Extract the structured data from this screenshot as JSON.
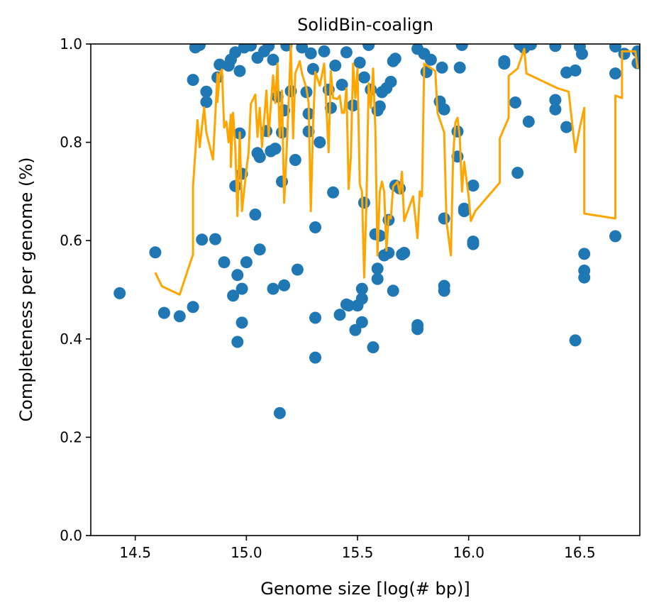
{
  "chart_data": {
    "type": "scatter",
    "title": "SolidBin-coalign",
    "xlabel": "Genome size [log(# bp)]",
    "ylabel": "Completeness per genome (%)",
    "xlim": [
      14.3,
      16.77
    ],
    "ylim": [
      0.0,
      1.0
    ],
    "xticks": [
      14.5,
      15.0,
      15.5,
      16.0,
      16.5
    ],
    "xtick_labels": [
      "14.5",
      "15.0",
      "15.5",
      "16.0",
      "16.5"
    ],
    "yticks": [
      0.0,
      0.2,
      0.4,
      0.6,
      0.8,
      1.0
    ],
    "ytick_labels": [
      "0.0",
      "0.2",
      "0.4",
      "0.6",
      "0.8",
      "1.0"
    ],
    "grid": false,
    "scatter_color": "#1f77b4",
    "line_color": "#ffa500",
    "points": [
      [
        14.43,
        0.493
      ],
      [
        14.59,
        0.576
      ],
      [
        14.63,
        0.453
      ],
      [
        14.7,
        0.446
      ],
      [
        14.76,
        0.465
      ],
      [
        14.76,
        0.927
      ],
      [
        14.77,
        0.993
      ],
      [
        14.79,
        0.998
      ],
      [
        14.8,
        0.602
      ],
      [
        14.82,
        0.903
      ],
      [
        14.82,
        0.882
      ],
      [
        14.86,
        0.603
      ],
      [
        14.87,
        0.932
      ],
      [
        14.88,
        0.958
      ],
      [
        14.9,
        0.556
      ],
      [
        14.92,
        0.956
      ],
      [
        14.93,
        0.968
      ],
      [
        14.94,
        0.488
      ],
      [
        14.95,
        0.711
      ],
      [
        14.95,
        0.983
      ],
      [
        14.96,
        0.394
      ],
      [
        14.96,
        0.53
      ],
      [
        14.97,
        0.945
      ],
      [
        14.97,
        0.818
      ],
      [
        14.98,
        0.502
      ],
      [
        14.98,
        0.433
      ],
      [
        14.98,
        0.736
      ],
      [
        14.99,
        0.993
      ],
      [
        15.0,
        0.556
      ],
      [
        15.02,
        0.997
      ],
      [
        15.04,
        0.653
      ],
      [
        15.05,
        0.972
      ],
      [
        15.05,
        0.778
      ],
      [
        15.06,
        0.77
      ],
      [
        15.06,
        0.582
      ],
      [
        15.08,
        0.985
      ],
      [
        15.09,
        0.823
      ],
      [
        15.1,
        0.996
      ],
      [
        15.11,
        0.782
      ],
      [
        15.12,
        0.502
      ],
      [
        15.12,
        0.968
      ],
      [
        15.13,
        0.787
      ],
      [
        15.14,
        0.893
      ],
      [
        15.15,
        0.249
      ],
      [
        15.16,
        0.82
      ],
      [
        15.16,
        0.72
      ],
      [
        15.17,
        0.865
      ],
      [
        15.17,
        0.509
      ],
      [
        15.18,
        0.997
      ],
      [
        15.2,
        0.904
      ],
      [
        15.22,
        0.764
      ],
      [
        15.23,
        0.541
      ],
      [
        15.25,
        0.993
      ],
      [
        15.27,
        0.902
      ],
      [
        15.28,
        0.822
      ],
      [
        15.28,
        0.858
      ],
      [
        15.29,
        0.981
      ],
      [
        15.3,
        0.949
      ],
      [
        15.31,
        0.627
      ],
      [
        15.31,
        0.443
      ],
      [
        15.31,
        0.362
      ],
      [
        15.33,
        0.8
      ],
      [
        15.35,
        0.985
      ],
      [
        15.37,
        0.907
      ],
      [
        15.38,
        0.87
      ],
      [
        15.39,
        0.698
      ],
      [
        15.4,
        0.956
      ],
      [
        15.42,
        0.449
      ],
      [
        15.43,
        0.917
      ],
      [
        15.45,
        0.47
      ],
      [
        15.45,
        0.983
      ],
      [
        15.46,
        0.468
      ],
      [
        15.48,
        0.875
      ],
      [
        15.49,
        0.418
      ],
      [
        15.5,
        0.468
      ],
      [
        15.51,
        0.962
      ],
      [
        15.52,
        0.482
      ],
      [
        15.52,
        0.502
      ],
      [
        15.52,
        0.434
      ],
      [
        15.53,
        0.677
      ],
      [
        15.53,
        0.932
      ],
      [
        15.55,
        0.998
      ],
      [
        15.56,
        0.907
      ],
      [
        15.57,
        0.383
      ],
      [
        15.58,
        0.613
      ],
      [
        15.59,
        0.865
      ],
      [
        15.59,
        0.543
      ],
      [
        15.59,
        0.522
      ],
      [
        15.6,
        0.873
      ],
      [
        15.6,
        0.61
      ],
      [
        15.61,
        0.902
      ],
      [
        15.62,
        0.57
      ],
      [
        15.63,
        0.91
      ],
      [
        15.64,
        0.575
      ],
      [
        15.64,
        0.642
      ],
      [
        15.65,
        0.923
      ],
      [
        15.66,
        0.965
      ],
      [
        15.66,
        0.498
      ],
      [
        15.67,
        0.97
      ],
      [
        15.67,
        0.712
      ],
      [
        15.69,
        0.706
      ],
      [
        15.7,
        0.572
      ],
      [
        15.71,
        0.575
      ],
      [
        15.77,
        0.428
      ],
      [
        15.77,
        0.42
      ],
      [
        15.77,
        0.99
      ],
      [
        15.8,
        0.98
      ],
      [
        15.81,
        0.943
      ],
      [
        15.83,
        0.968
      ],
      [
        15.87,
        0.883
      ],
      [
        15.88,
        0.952
      ],
      [
        15.89,
        0.645
      ],
      [
        15.89,
        0.867
      ],
      [
        15.89,
        0.508
      ],
      [
        15.89,
        0.498
      ],
      [
        15.95,
        0.822
      ],
      [
        15.95,
        0.771
      ],
      [
        15.96,
        0.952
      ],
      [
        15.97,
        0.998
      ],
      [
        15.98,
        0.665
      ],
      [
        15.98,
        0.66
      ],
      [
        16.02,
        0.712
      ],
      [
        16.02,
        0.598
      ],
      [
        16.02,
        0.593
      ],
      [
        16.16,
        0.965
      ],
      [
        16.16,
        0.96
      ],
      [
        16.21,
        0.881
      ],
      [
        16.22,
        0.738
      ],
      [
        16.23,
        0.999
      ],
      [
        16.25,
        0.992
      ],
      [
        16.27,
        0.842
      ],
      [
        16.28,
        0.999
      ],
      [
        16.39,
        0.996
      ],
      [
        16.39,
        0.886
      ],
      [
        16.39,
        0.867
      ],
      [
        16.44,
        0.831
      ],
      [
        16.44,
        0.942
      ],
      [
        16.48,
        0.946
      ],
      [
        16.48,
        0.397
      ],
      [
        16.5,
        0.995
      ],
      [
        16.51,
        0.98
      ],
      [
        16.52,
        0.573
      ],
      [
        16.52,
        0.539
      ],
      [
        16.52,
        0.525
      ],
      [
        16.66,
        0.995
      ],
      [
        16.66,
        0.94
      ],
      [
        16.66,
        0.609
      ],
      [
        16.7,
        0.98
      ],
      [
        16.76,
        0.985
      ],
      [
        16.76,
        0.961
      ]
    ],
    "line": [
      [
        14.59,
        0.535
      ],
      [
        14.62,
        0.507
      ],
      [
        14.7,
        0.49
      ],
      [
        14.76,
        0.572
      ],
      [
        14.76,
        0.71
      ],
      [
        14.78,
        0.845
      ],
      [
        14.79,
        0.79
      ],
      [
        14.81,
        0.871
      ],
      [
        14.82,
        0.82
      ],
      [
        14.85,
        0.765
      ],
      [
        14.87,
        0.94
      ],
      [
        14.87,
        0.882
      ],
      [
        14.88,
        0.938
      ],
      [
        14.89,
        0.948
      ],
      [
        14.9,
        0.83
      ],
      [
        14.91,
        0.842
      ],
      [
        14.92,
        0.8
      ],
      [
        14.93,
        0.856
      ],
      [
        14.93,
        0.75
      ],
      [
        14.94,
        0.86
      ],
      [
        14.95,
        0.79
      ],
      [
        14.96,
        0.65
      ],
      [
        14.97,
        0.82
      ],
      [
        14.98,
        0.66
      ],
      [
        15.0,
        0.745
      ],
      [
        15.01,
        0.78
      ],
      [
        15.02,
        0.878
      ],
      [
        15.04,
        0.897
      ],
      [
        15.05,
        0.811
      ],
      [
        15.06,
        0.87
      ],
      [
        15.07,
        0.79
      ],
      [
        15.09,
        0.905
      ],
      [
        15.1,
        0.812
      ],
      [
        15.11,
        0.875
      ],
      [
        15.12,
        0.936
      ],
      [
        15.13,
        0.88
      ],
      [
        15.14,
        0.96
      ],
      [
        15.15,
        0.81
      ],
      [
        15.16,
        0.905
      ],
      [
        15.17,
        0.677
      ],
      [
        15.18,
        0.775
      ],
      [
        15.19,
        0.88
      ],
      [
        15.2,
        0.997
      ],
      [
        15.21,
        0.808
      ],
      [
        15.22,
        0.94
      ],
      [
        15.24,
        0.965
      ],
      [
        15.25,
        0.94
      ],
      [
        15.27,
        0.91
      ],
      [
        15.28,
        0.88
      ],
      [
        15.29,
        0.66
      ],
      [
        15.3,
        0.836
      ],
      [
        15.31,
        0.943
      ],
      [
        15.33,
        0.915
      ],
      [
        15.35,
        0.96
      ],
      [
        15.37,
        0.78
      ],
      [
        15.38,
        0.945
      ],
      [
        15.39,
        0.89
      ],
      [
        15.41,
        0.888
      ],
      [
        15.42,
        0.895
      ],
      [
        15.43,
        0.86
      ],
      [
        15.44,
        0.86
      ],
      [
        15.45,
        0.91
      ],
      [
        15.46,
        0.705
      ],
      [
        15.47,
        0.77
      ],
      [
        15.48,
        0.96
      ],
      [
        15.49,
        0.89
      ],
      [
        15.5,
        0.95
      ],
      [
        15.51,
        0.715
      ],
      [
        15.52,
        0.7
      ],
      [
        15.53,
        0.525
      ],
      [
        15.54,
        0.675
      ],
      [
        15.55,
        0.92
      ],
      [
        15.56,
        0.87
      ],
      [
        15.57,
        0.95
      ],
      [
        15.58,
        0.83
      ],
      [
        15.59,
        0.57
      ],
      [
        15.6,
        0.7
      ],
      [
        15.61,
        0.72
      ],
      [
        15.62,
        0.7
      ],
      [
        15.63,
        0.58
      ],
      [
        15.64,
        0.65
      ],
      [
        15.65,
        0.645
      ],
      [
        15.66,
        0.71
      ],
      [
        15.67,
        0.715
      ],
      [
        15.68,
        0.72
      ],
      [
        15.69,
        0.695
      ],
      [
        15.7,
        0.74
      ],
      [
        15.71,
        0.64
      ],
      [
        15.73,
        0.665
      ],
      [
        15.75,
        0.69
      ],
      [
        15.77,
        0.605
      ],
      [
        15.78,
        0.7
      ],
      [
        15.79,
        0.69
      ],
      [
        15.8,
        0.96
      ],
      [
        15.85,
        0.945
      ],
      [
        15.86,
        0.86
      ],
      [
        15.89,
        0.82
      ],
      [
        15.9,
        0.64
      ],
      [
        15.92,
        0.57
      ],
      [
        15.93,
        0.77
      ],
      [
        15.94,
        0.84
      ],
      [
        15.95,
        0.85
      ],
      [
        15.96,
        0.81
      ],
      [
        15.97,
        0.7
      ],
      [
        15.98,
        0.76
      ],
      [
        16.0,
        0.69
      ],
      [
        16.01,
        0.64
      ],
      [
        16.03,
        0.66
      ],
      [
        16.14,
        0.718
      ],
      [
        16.14,
        0.808
      ],
      [
        16.18,
        0.85
      ],
      [
        16.18,
        0.935
      ],
      [
        16.22,
        0.95
      ],
      [
        16.25,
        0.99
      ],
      [
        16.26,
        0.94
      ],
      [
        16.4,
        0.91
      ],
      [
        16.45,
        0.903
      ],
      [
        16.48,
        0.78
      ],
      [
        16.49,
        0.806
      ],
      [
        16.5,
        0.83
      ],
      [
        16.52,
        0.87
      ],
      [
        16.52,
        0.655
      ],
      [
        16.66,
        0.645
      ],
      [
        16.66,
        0.895
      ],
      [
        16.69,
        0.89
      ],
      [
        16.69,
        0.985
      ],
      [
        16.75,
        0.985
      ],
      [
        16.76,
        0.95
      ]
    ]
  }
}
